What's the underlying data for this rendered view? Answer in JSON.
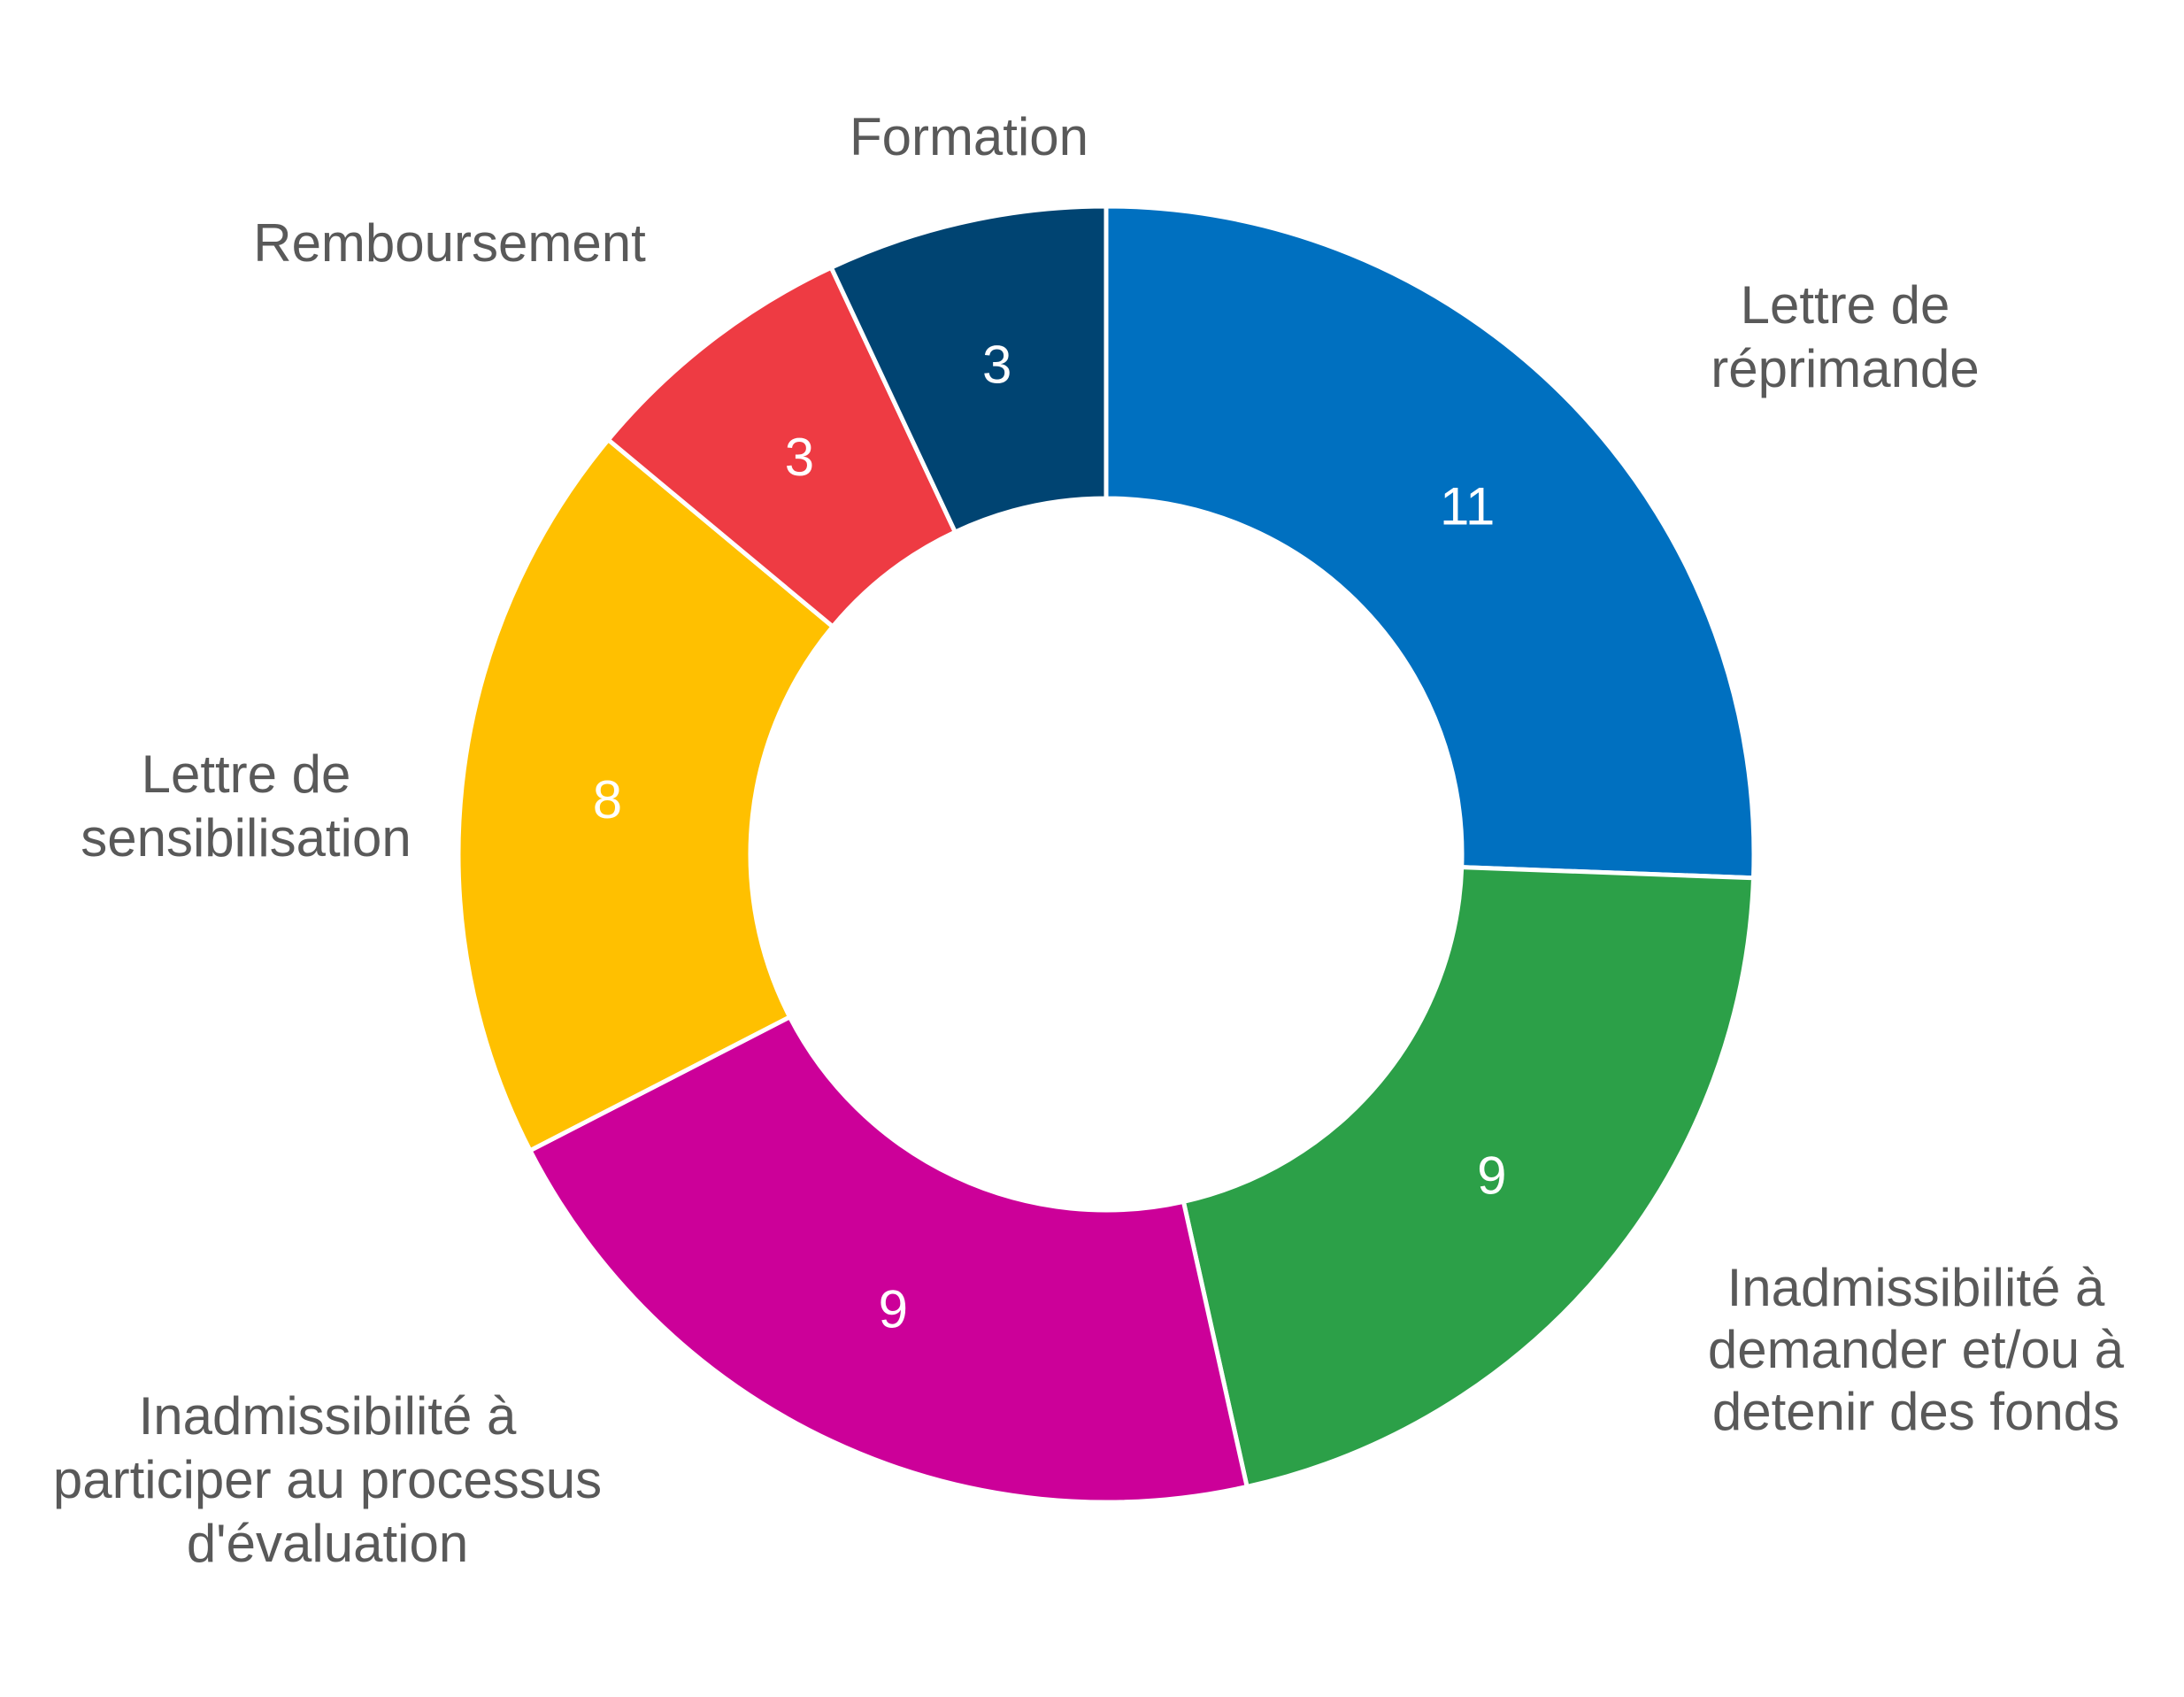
{
  "chart_data": {
    "type": "pie",
    "donut": true,
    "title": "",
    "categories": [
      "Lettre de réprimande",
      "Inadmissibilité à demander et/ou à detenir des fonds",
      "Inadmissibilité à participer au processus d'évaluation",
      "Lettre de sensibilisation",
      "Remboursement",
      "Formation"
    ],
    "label_lines": [
      [
        "Lettre de",
        "réprimande"
      ],
      [
        "Inadmissibilité à",
        "demander et/ou à",
        "detenir des fonds"
      ],
      [
        "Inadmissibilité à",
        "participer au processus",
        "d'évaluation"
      ],
      [
        "Lettre de",
        "sensibilisation"
      ],
      [
        "Remboursement"
      ],
      [
        "Formation"
      ]
    ],
    "values": [
      11,
      9,
      9,
      8,
      3,
      3
    ],
    "colors": [
      "#0070C0",
      "#2CA048",
      "#CC0099",
      "#FFC000",
      "#EE3B43",
      "#004472"
    ],
    "start": "12 o'clock",
    "direction": "clockwise",
    "legend": "none"
  }
}
